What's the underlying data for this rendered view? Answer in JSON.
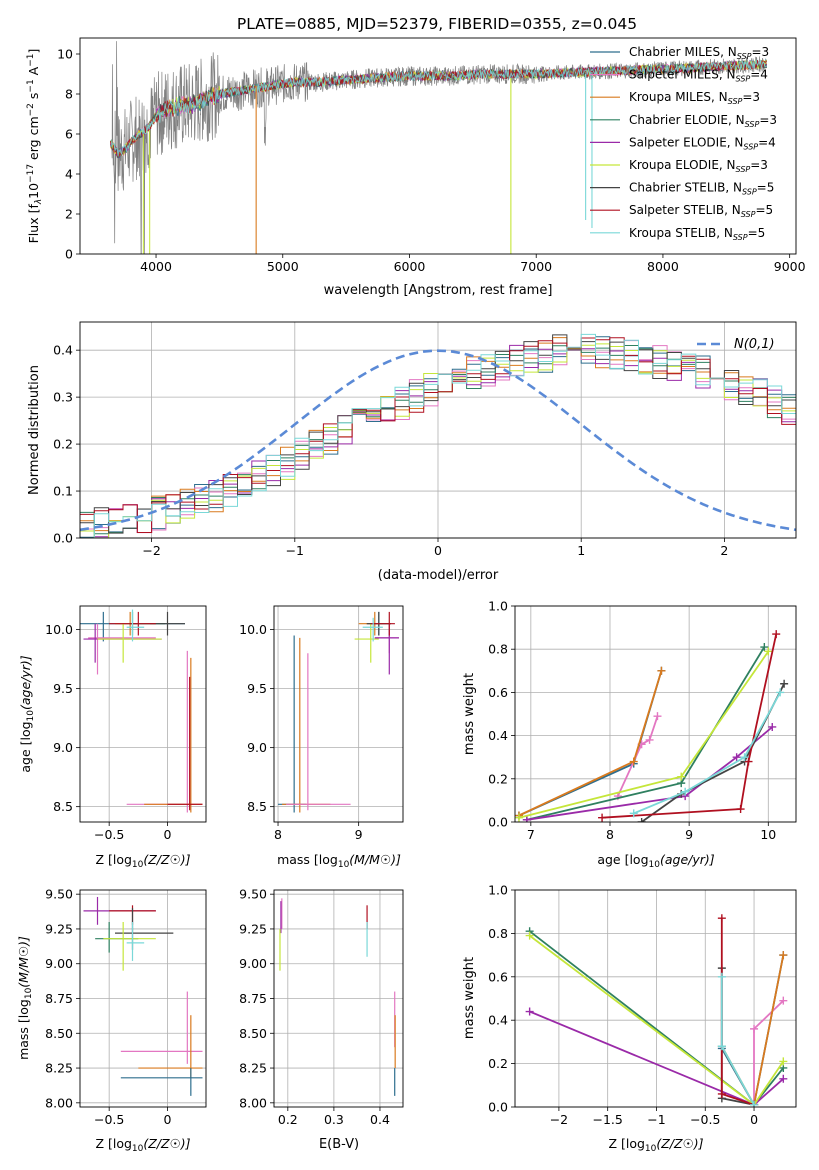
{
  "figure_title": "PLATE=0885, MJD=52379, FIBERID=0355, z=0.045",
  "series": [
    {
      "name": "Chabrier MILES, N$_{SSP}$=3",
      "label_main": "Chabrier MILES, N",
      "label_tail": "=3",
      "color": "#2e6e8e"
    },
    {
      "name": "Salpeter MILES, N$_{SSP}$=4",
      "label_main": "Salpeter MILES, N",
      "label_tail": "=4",
      "color": "#e377c2"
    },
    {
      "name": "Kroupa MILES, N$_{SSP}$=3",
      "label_main": "Kroupa MILES, N",
      "label_tail": "=3",
      "color": "#d97a1e"
    },
    {
      "name": "Chabrier ELODIE, N$_{SSP}$=3",
      "label_main": "Chabrier ELODIE, N",
      "label_tail": "=3",
      "color": "#2f8060"
    },
    {
      "name": "Salpeter ELODIE, N$_{SSP}$=4",
      "label_main": "Salpeter ELODIE, N",
      "label_tail": "=4",
      "color": "#9a2aa8"
    },
    {
      "name": "Kroupa ELODIE, N$_{SSP}$=3",
      "label_main": "Kroupa ELODIE, N",
      "label_tail": "=3",
      "color": "#c5e63a"
    },
    {
      "name": "Chabrier STELIB, N$_{SSP}$=5",
      "label_main": "Chabrier STELIB, N",
      "label_tail": "=5",
      "color": "#444444"
    },
    {
      "name": "Salpeter STELIB, N$_{SSP}$=5",
      "label_main": "Salpeter STELIB, N",
      "label_tail": "=5",
      "color": "#b01020"
    },
    {
      "name": "Kroupa STELIB, N$_{SSP}$=5",
      "label_main": "Kroupa STELIB, N",
      "label_tail": "=5",
      "color": "#7ad8d8"
    }
  ],
  "ssp_subscript": "SSP",
  "chart_data": [
    {
      "id": "spectrum",
      "type": "line",
      "xlabel": "wavelength [Angstrom, rest frame]",
      "ylabel": "Flux [f_λ 10^-17 erg cm^-2 s^-1 A^-1]",
      "ylabel_parts": {
        "a": "Flux [f",
        "b": "λ",
        "c": "10",
        "d": "−17",
        "e": " erg cm",
        "f": "−2",
        "g": " s",
        "h": "−1",
        "i": " A",
        "j": "−1",
        "k": "]"
      },
      "xlim": [
        3400,
        9050
      ],
      "ylim": [
        0,
        10.8
      ],
      "xticks": [
        4000,
        5000,
        6000,
        7000,
        8000,
        9000
      ],
      "yticks": [
        0,
        2,
        4,
        6,
        8,
        10
      ],
      "data_color": "#808080",
      "model_envelope": {
        "x": [
          3650,
          3700,
          3750,
          3800,
          3850,
          3900,
          3950,
          4000,
          4100,
          4200,
          4300,
          4400,
          4500,
          4700,
          4900,
          5100,
          5300,
          5500,
          5700,
          6000,
          6300,
          6600,
          7000,
          7400,
          7800,
          8200,
          8500,
          8800
        ],
        "y": [
          5.5,
          5.0,
          5.2,
          5.6,
          5.9,
          6.1,
          6.4,
          6.9,
          7.3,
          7.4,
          7.5,
          7.8,
          8.0,
          8.2,
          8.4,
          8.6,
          8.6,
          8.7,
          8.8,
          8.9,
          8.9,
          9.0,
          9.0,
          9.1,
          9.2,
          9.3,
          9.4,
          9.5
        ]
      }
    },
    {
      "id": "residual_hist",
      "type": "histogram",
      "xlabel": "(data-model)/error",
      "ylabel": "Normed distribution",
      "xlim": [
        -2.5,
        2.5
      ],
      "ylim": [
        0,
        0.46
      ],
      "xticks": [
        -2,
        -1,
        0,
        1,
        2
      ],
      "yticks": [
        0.0,
        0.1,
        0.2,
        0.3,
        0.4
      ],
      "bin_width": 0.1,
      "bin_start": -2.5,
      "base_density": [
        0.026,
        0.03,
        0.035,
        0.04,
        0.047,
        0.054,
        0.062,
        0.071,
        0.081,
        0.092,
        0.104,
        0.117,
        0.131,
        0.145,
        0.16,
        0.176,
        0.192,
        0.208,
        0.225,
        0.241,
        0.257,
        0.273,
        0.288,
        0.302,
        0.316,
        0.328,
        0.34,
        0.351,
        0.361,
        0.37,
        0.377,
        0.384,
        0.39,
        0.395,
        0.398,
        0.4,
        0.398,
        0.395,
        0.39,
        0.384,
        0.377,
        0.37,
        0.361,
        0.351,
        0.34,
        0.328,
        0.316,
        0.302,
        0.288,
        0.273
      ],
      "normal_label": "N(0,1)",
      "normal_color": "#5b8ad6"
    },
    {
      "id": "age_vs_Z",
      "type": "errorbar",
      "xlabel": "Z [log10(Z/Z☉)]",
      "ylabel": "age [log10(age/yr)]",
      "xlim": [
        -0.75,
        0.33
      ],
      "ylim": [
        8.37,
        10.2
      ],
      "xticks": [
        -0.5,
        0.0
      ],
      "yticks": [
        8.5,
        9.0,
        9.5,
        10.0
      ]
    },
    {
      "id": "age_vs_mass",
      "type": "errorbar",
      "xlabel": "mass [log10(M/M☉)]",
      "ylabel": "",
      "xlim": [
        7.95,
        9.55
      ],
      "ylim": [
        8.37,
        10.2
      ],
      "xticks": [
        8,
        9
      ],
      "yticks": [
        8.5,
        9.0,
        9.5,
        10.0
      ]
    },
    {
      "id": "mw_vs_age",
      "type": "line",
      "xlabel": "age [log10(age/yr)]",
      "ylabel": "mass weight",
      "xlim": [
        6.8,
        10.35
      ],
      "ylim": [
        0,
        1.0
      ],
      "xticks": [
        7,
        8,
        9,
        10
      ],
      "yticks": [
        0.0,
        0.2,
        0.4,
        0.6,
        0.8,
        1.0
      ],
      "series_points": [
        {
          "x": [
            6.85,
            8.3,
            8.65
          ],
          "y": [
            0.03,
            0.27,
            0.7
          ]
        },
        {
          "x": [
            8.1,
            8.4,
            8.5,
            8.6
          ],
          "y": [
            0.12,
            0.36,
            0.38,
            0.49
          ]
        },
        {
          "x": [
            6.85,
            8.3,
            8.65
          ],
          "y": [
            0.03,
            0.28,
            0.7
          ]
        },
        {
          "x": [
            6.95,
            8.9,
            9.95
          ],
          "y": [
            0.01,
            0.18,
            0.81
          ]
        },
        {
          "x": [
            6.95,
            8.95,
            9.6,
            10.05
          ],
          "y": [
            0.01,
            0.12,
            0.3,
            0.44
          ]
        },
        {
          "x": [
            6.85,
            8.9,
            10.0
          ],
          "y": [
            0.02,
            0.21,
            0.79
          ]
        },
        {
          "x": [
            8.4,
            8.9,
            9.7,
            10.2
          ],
          "y": [
            0.0,
            0.13,
            0.28,
            0.64
          ]
        },
        {
          "x": [
            7.9,
            9.65,
            9.75,
            10.1
          ],
          "y": [
            0.02,
            0.06,
            0.28,
            0.87
          ]
        },
        {
          "x": [
            8.3,
            8.95,
            9.7,
            10.15
          ],
          "y": [
            0.04,
            0.14,
            0.3,
            0.6
          ]
        }
      ]
    },
    {
      "id": "mass_vs_Z",
      "type": "errorbar",
      "xlabel": "Z [log10(Z/Z☉)]",
      "ylabel": "mass [log10(M/M☉)]",
      "xlim": [
        -0.75,
        0.33
      ],
      "ylim": [
        7.97,
        9.53
      ],
      "xticks": [
        -0.5,
        0.0
      ],
      "yticks": [
        8.0,
        8.25,
        8.5,
        8.75,
        9.0,
        9.25,
        9.5
      ]
    },
    {
      "id": "mass_vs_EBV",
      "type": "errorbar",
      "xlabel": "E(B-V)",
      "ylabel": "",
      "xlim": [
        0.17,
        0.45
      ],
      "ylim": [
        7.97,
        9.53
      ],
      "xticks": [
        0.2,
        0.3,
        0.4
      ],
      "yticks": [
        8.0,
        8.25,
        8.5,
        8.75,
        9.0,
        9.25,
        9.5
      ]
    },
    {
      "id": "mw_vs_Z",
      "type": "line",
      "xlabel": "Z [log10(Z/Z☉)]",
      "ylabel": "mass weight",
      "xlim": [
        -2.45,
        0.43
      ],
      "ylim": [
        0,
        1.0
      ],
      "xticks": [
        -2.0,
        -1.5,
        -1.0,
        -0.5,
        0.0
      ],
      "yticks": [
        0.0,
        0.2,
        0.4,
        0.6,
        0.8,
        1.0
      ],
      "series_points": [
        {
          "x": [
            -0.33,
            0.0,
            0.3
          ],
          "y": [
            0.27,
            0.01,
            0.7
          ]
        },
        {
          "x": [
            0.0,
            0.0,
            0.3
          ],
          "y": [
            0.02,
            0.36,
            0.49
          ]
        },
        {
          "x": [
            -0.33,
            0.0,
            0.3
          ],
          "y": [
            0.28,
            0.01,
            0.7
          ]
        },
        {
          "x": [
            -2.3,
            0.0,
            0.3
          ],
          "y": [
            0.81,
            0.01,
            0.18
          ]
        },
        {
          "x": [
            -2.3,
            0.0,
            0.3
          ],
          "y": [
            0.44,
            0.01,
            0.13
          ]
        },
        {
          "x": [
            -2.3,
            0.0,
            0.3
          ],
          "y": [
            0.79,
            0.01,
            0.21
          ]
        },
        {
          "x": [
            -0.33,
            -0.33,
            0.0
          ],
          "y": [
            0.64,
            0.04,
            0.01
          ]
        },
        {
          "x": [
            -0.33,
            -0.33,
            0.0
          ],
          "y": [
            0.87,
            0.06,
            0.01
          ]
        },
        {
          "x": [
            -0.33,
            -0.33,
            0.0
          ],
          "y": [
            0.6,
            0.28,
            0.01
          ]
        }
      ]
    }
  ]
}
